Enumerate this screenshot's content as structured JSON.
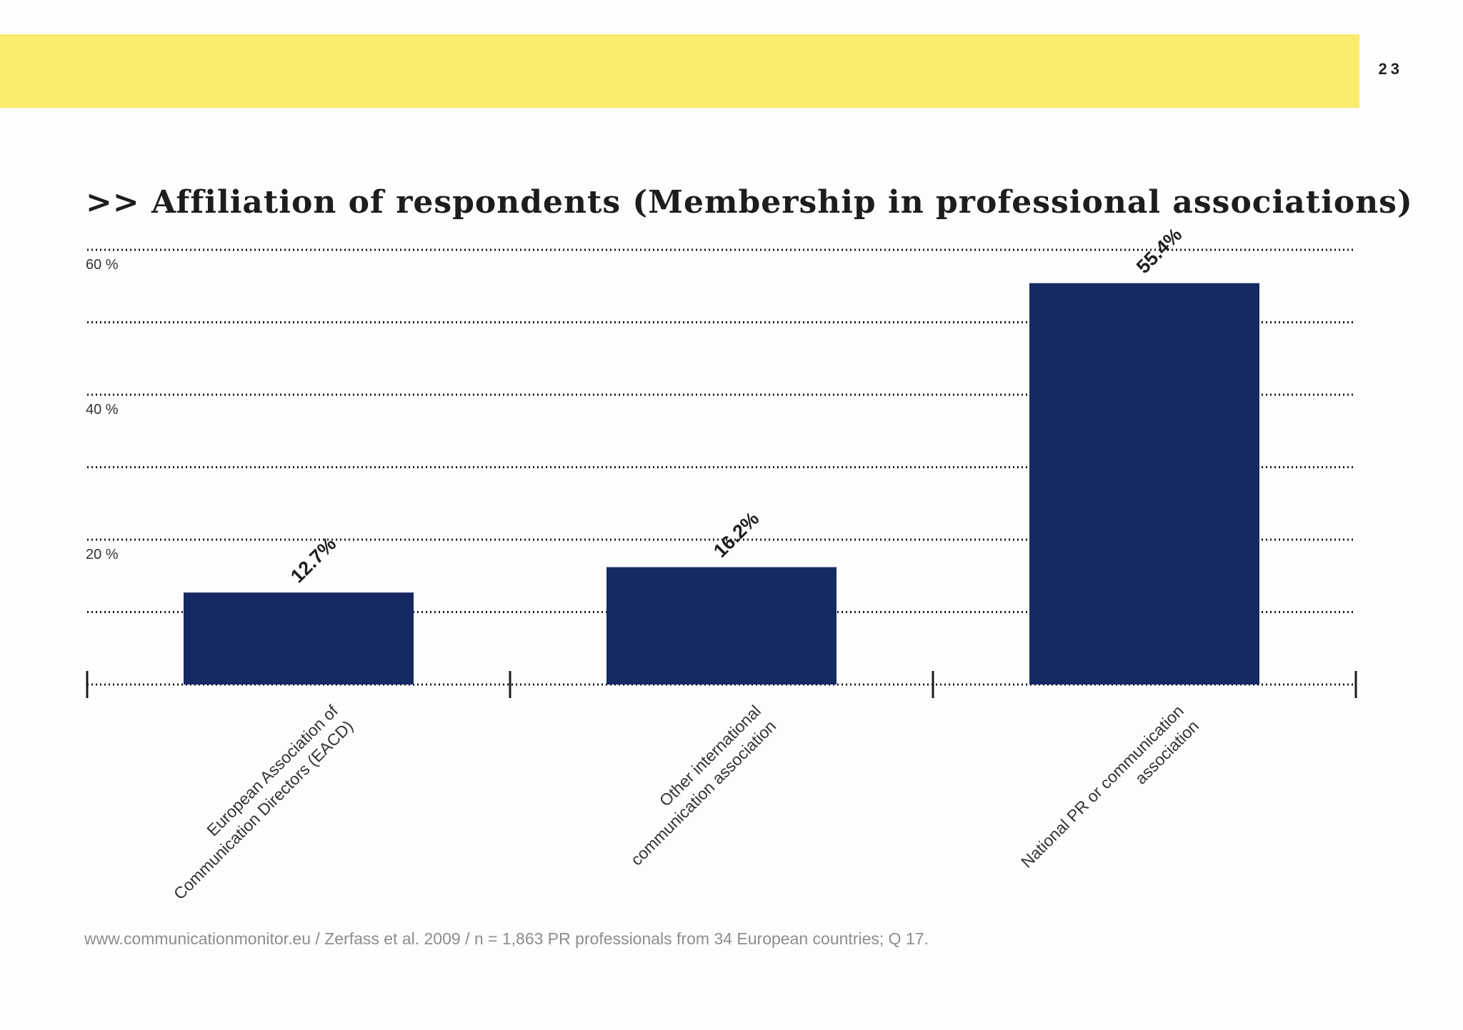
{
  "page": {
    "number": "23"
  },
  "header": {
    "title": ">> Affiliation of respondents (Membership in professional associations)"
  },
  "footer": {
    "source": "www.communicationmonitor.eu / Zerfass et al. 2009 / n = 1,863 PR professionals from 34 European countries; Q 17."
  },
  "colors": {
    "band": "#fbeb6e",
    "bar": "#172963",
    "grid": "#1a1a1a"
  },
  "chart_data": {
    "type": "bar",
    "title": ">> Affiliation of respondents (Membership in professional associations)",
    "categories": [
      [
        "European Association of",
        "Communication Directors (EACD)"
      ],
      [
        "Other international",
        "communication association"
      ],
      [
        "National PR or communication",
        "association"
      ]
    ],
    "values": [
      12.7,
      16.2,
      55.4
    ],
    "value_labels": [
      "12.7%",
      "16.2%",
      "55.4%"
    ],
    "ylim": [
      0,
      60
    ],
    "gridlines": [
      10,
      20,
      30,
      40,
      50,
      60
    ],
    "yticks": [
      {
        "value": 20,
        "label": "20 %"
      },
      {
        "value": 40,
        "label": "40 %"
      },
      {
        "value": 60,
        "label": "60 %"
      }
    ],
    "grid": true,
    "xlabel": "",
    "ylabel": ""
  }
}
